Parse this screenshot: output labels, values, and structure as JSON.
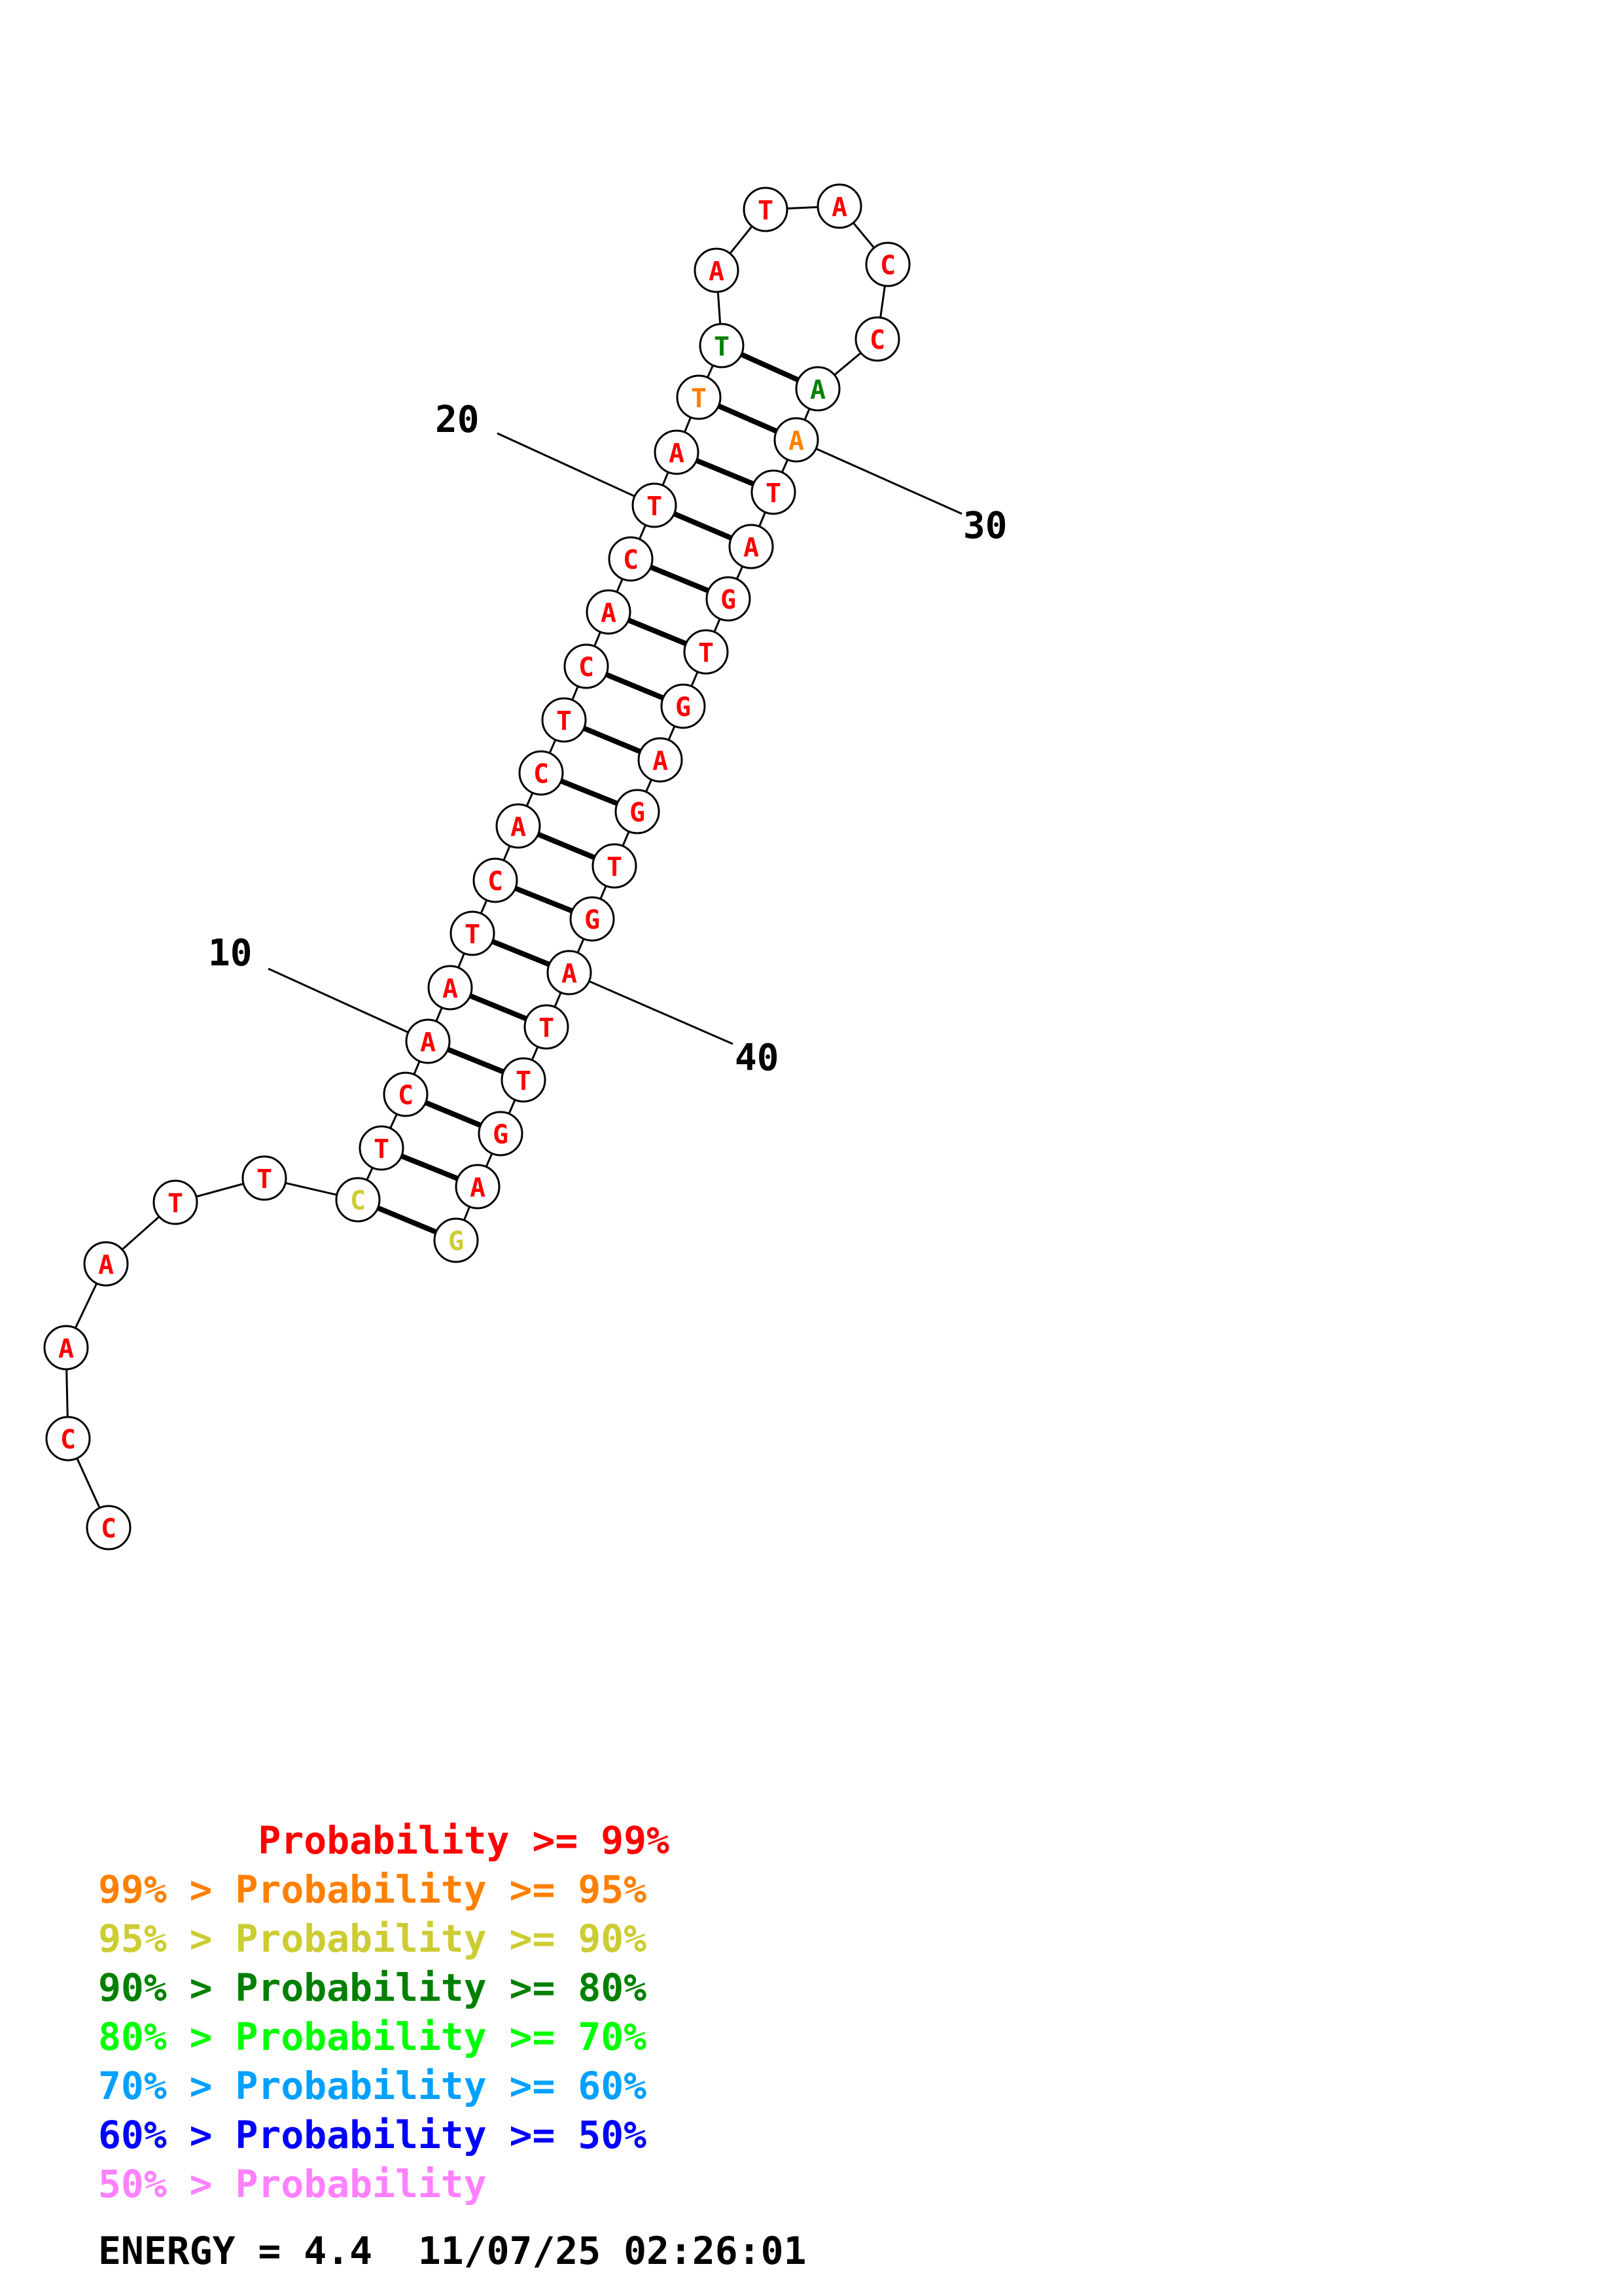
{
  "colors": {
    "p99": "#ff0000",
    "p95": "#ff8000",
    "p90": "#cccc33",
    "p80": "#008000",
    "p70": "#00ff00",
    "p60": "#00a0ff",
    "p50": "#0000ff",
    "plt50": "#ff80ff"
  },
  "nucleotides": [
    {
      "i": 1,
      "base": "C",
      "cls": "p99"
    },
    {
      "i": 2,
      "base": "C",
      "cls": "p99"
    },
    {
      "i": 3,
      "base": "A",
      "cls": "p99"
    },
    {
      "i": 4,
      "base": "A",
      "cls": "p99"
    },
    {
      "i": 5,
      "base": "T",
      "cls": "p99"
    },
    {
      "i": 6,
      "base": "T",
      "cls": "p99"
    },
    {
      "i": 7,
      "base": "C",
      "cls": "p90"
    },
    {
      "i": 8,
      "base": "T",
      "cls": "p99"
    },
    {
      "i": 9,
      "base": "C",
      "cls": "p99"
    },
    {
      "i": 10,
      "base": "A",
      "cls": "p99"
    },
    {
      "i": 11,
      "base": "A",
      "cls": "p99"
    },
    {
      "i": 12,
      "base": "T",
      "cls": "p99"
    },
    {
      "i": 13,
      "base": "C",
      "cls": "p99"
    },
    {
      "i": 14,
      "base": "A",
      "cls": "p99"
    },
    {
      "i": 15,
      "base": "C",
      "cls": "p99"
    },
    {
      "i": 16,
      "base": "T",
      "cls": "p99"
    },
    {
      "i": 17,
      "base": "C",
      "cls": "p99"
    },
    {
      "i": 18,
      "base": "A",
      "cls": "p99"
    },
    {
      "i": 19,
      "base": "C",
      "cls": "p99"
    },
    {
      "i": 20,
      "base": "T",
      "cls": "p99"
    },
    {
      "i": 21,
      "base": "A",
      "cls": "p99"
    },
    {
      "i": 22,
      "base": "T",
      "cls": "p95"
    },
    {
      "i": 23,
      "base": "T",
      "cls": "p80"
    },
    {
      "i": 24,
      "base": "A",
      "cls": "p99"
    },
    {
      "i": 25,
      "base": "T",
      "cls": "p99"
    },
    {
      "i": 26,
      "base": "A",
      "cls": "p99"
    },
    {
      "i": 27,
      "base": "C",
      "cls": "p99"
    },
    {
      "i": 28,
      "base": "C",
      "cls": "p99"
    },
    {
      "i": 29,
      "base": "A",
      "cls": "p80"
    },
    {
      "i": 30,
      "base": "A",
      "cls": "p95"
    },
    {
      "i": 31,
      "base": "T",
      "cls": "p99"
    },
    {
      "i": 32,
      "base": "A",
      "cls": "p99"
    },
    {
      "i": 33,
      "base": "G",
      "cls": "p99"
    },
    {
      "i": 34,
      "base": "T",
      "cls": "p99"
    },
    {
      "i": 35,
      "base": "G",
      "cls": "p99"
    },
    {
      "i": 36,
      "base": "A",
      "cls": "p99"
    },
    {
      "i": 37,
      "base": "G",
      "cls": "p99"
    },
    {
      "i": 38,
      "base": "T",
      "cls": "p99"
    },
    {
      "i": 39,
      "base": "G",
      "cls": "p99"
    },
    {
      "i": 40,
      "base": "A",
      "cls": "p99"
    },
    {
      "i": 41,
      "base": "T",
      "cls": "p99"
    },
    {
      "i": 42,
      "base": "T",
      "cls": "p99"
    },
    {
      "i": 43,
      "base": "G",
      "cls": "p99"
    },
    {
      "i": 44,
      "base": "A",
      "cls": "p99"
    },
    {
      "i": 45,
      "base": "G",
      "cls": "p90"
    }
  ],
  "pairs": [
    [
      7,
      45
    ],
    [
      8,
      44
    ],
    [
      9,
      43
    ],
    [
      10,
      42
    ],
    [
      11,
      41
    ],
    [
      12,
      40
    ],
    [
      13,
      39
    ],
    [
      14,
      38
    ],
    [
      15,
      37
    ],
    [
      16,
      36
    ],
    [
      17,
      35
    ],
    [
      18,
      34
    ],
    [
      19,
      33
    ],
    [
      20,
      32
    ],
    [
      21,
      31
    ],
    [
      22,
      30
    ],
    [
      23,
      29
    ]
  ],
  "number_labels": [
    {
      "text": "10",
      "nuc": 10
    },
    {
      "text": "20",
      "nuc": 20
    },
    {
      "text": "30",
      "nuc": 30
    },
    {
      "text": "40",
      "nuc": 40
    }
  ],
  "legend": [
    {
      "text": "       Probability >= 99%",
      "cls": "p99"
    },
    {
      "text": "99% > Probability >= 95%",
      "cls": "p95"
    },
    {
      "text": "95% > Probability >= 90%",
      "cls": "p90"
    },
    {
      "text": "90% > Probability >= 80%",
      "cls": "p80"
    },
    {
      "text": "80% > Probability >= 70%",
      "cls": "p70"
    },
    {
      "text": "70% > Probability >= 60%",
      "cls": "p60"
    },
    {
      "text": "60% > Probability >= 50%",
      "cls": "p50"
    },
    {
      "text": "50% > Probability",
      "cls": "plt50"
    }
  ],
  "energy": "ENERGY = 4.4  11/07/25 02:26:01"
}
